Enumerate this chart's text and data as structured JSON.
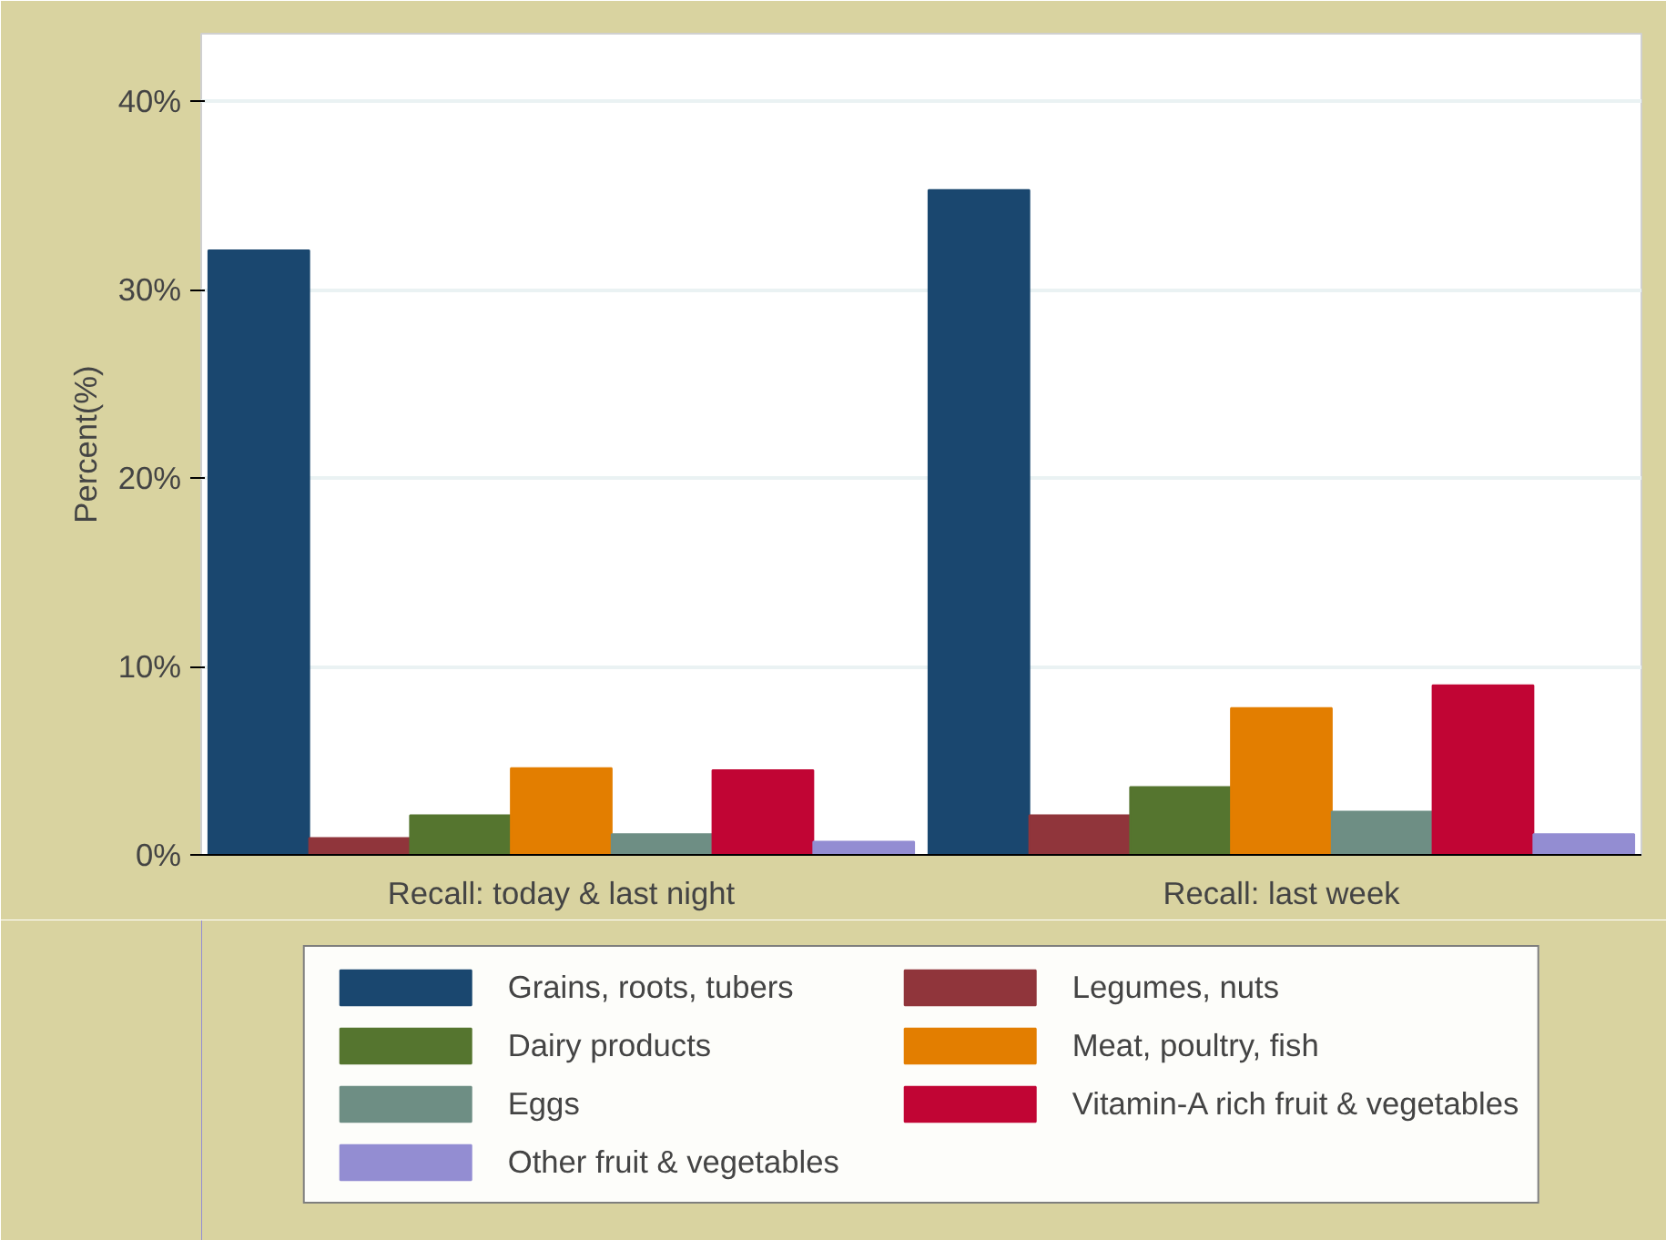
{
  "chart_data": {
    "type": "bar",
    "ylabel": "Percent(%)",
    "categories": [
      "Recall: today & last night",
      "Recall: last week"
    ],
    "series": [
      {
        "name": "Grains, roots, tubers",
        "color": "#1a476f",
        "values": [
          32.1,
          35.3
        ]
      },
      {
        "name": "Legumes, nuts",
        "color": "#90353b",
        "values": [
          0.9,
          2.1
        ]
      },
      {
        "name": "Dairy products",
        "color": "#55752f",
        "values": [
          2.1,
          3.6
        ]
      },
      {
        "name": "Meat, poultry, fish",
        "color": "#e37e00",
        "values": [
          4.6,
          7.8
        ]
      },
      {
        "name": "Eggs",
        "color": "#6e8e84",
        "values": [
          1.1,
          2.3
        ]
      },
      {
        "name": "Vitamin-A rich fruit & vegetables",
        "color": "#c10534",
        "values": [
          4.5,
          9.0
        ]
      },
      {
        "name": "Other fruit & vegetables",
        "color": "#938dd2",
        "values": [
          0.7,
          1.1
        ]
      }
    ],
    "ylim": [
      0,
      43.6
    ],
    "yticks": [
      {
        "value": 0,
        "label": "0%"
      },
      {
        "value": 10,
        "label": "10%"
      },
      {
        "value": 20,
        "label": "20%"
      },
      {
        "value": 30,
        "label": "30%"
      },
      {
        "value": 40,
        "label": "40%"
      }
    ],
    "grid": "y",
    "legend": "bottom"
  }
}
